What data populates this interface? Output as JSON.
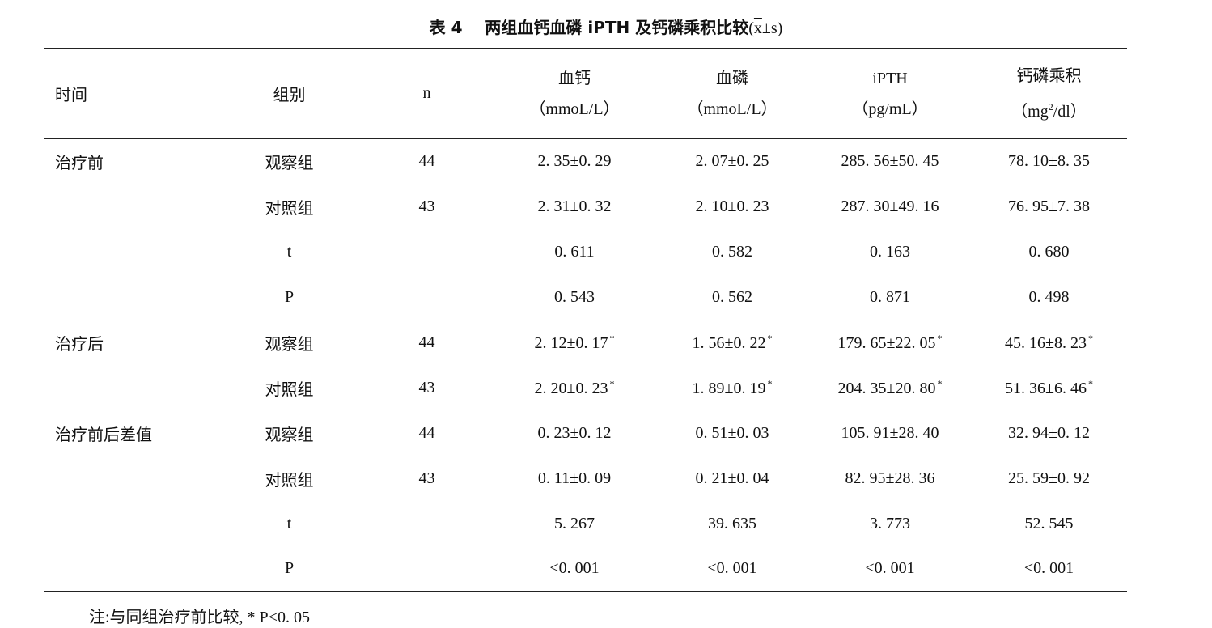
{
  "title": {
    "label": "表 4",
    "text": "两组血钙血磷 iPTH 及钙磷乘积比较",
    "stat": "x",
    "stat_rest": "±s"
  },
  "header": {
    "time": "时间",
    "group": "组别",
    "n": "n",
    "ca": "血钙",
    "ca_unit": "（mmoL/L）",
    "p": "血磷",
    "p_unit": "（mmoL/L）",
    "ipth": "iPTH",
    "ipth_unit": "（pg/mL）",
    "prod": "钙磷乘积",
    "prod_unit_a": "（mg",
    "prod_unit_sup": "2",
    "prod_unit_b": "/dl）"
  },
  "rows": [
    {
      "time": "治疗前",
      "group": "观察组",
      "n": "44",
      "ca": "2. 35±0. 29",
      "p": "2. 07±0. 25",
      "ipth": "285. 56±50. 45",
      "prod": "78. 10±8. 35"
    },
    {
      "time": "",
      "group": "对照组",
      "n": "43",
      "ca": "2. 31±0. 32",
      "p": "2. 10±0. 23",
      "ipth": "287. 30±49. 16",
      "prod": "76. 95±7. 38"
    },
    {
      "time": "",
      "group": "t",
      "n": "",
      "ca": "0. 611",
      "p": "0. 582",
      "ipth": "0. 163",
      "prod": "0. 680"
    },
    {
      "time": "",
      "group": "P",
      "n": "",
      "ca": "0. 543",
      "p": "0. 562",
      "ipth": "0. 871",
      "prod": "0. 498"
    },
    {
      "time": "治疗后",
      "group": "观察组",
      "n": "44",
      "ca": "2. 12±0. 17",
      "p": "1. 56±0. 22",
      "ipth": "179. 65±22. 05",
      "prod": "45. 16±8. 23",
      "mark": "*"
    },
    {
      "time": "",
      "group": "对照组",
      "n": "43",
      "ca": "2. 20±0. 23",
      "p": "1. 89±0. 19",
      "ipth": "204. 35±20. 80",
      "prod": "51. 36±6. 46",
      "mark": "*"
    },
    {
      "time": "治疗前后差值",
      "group": "观察组",
      "n": "44",
      "ca": "0. 23±0. 12",
      "p": "0. 51±0. 03",
      "ipth": "105. 91±28. 40",
      "prod": "32. 94±0. 12"
    },
    {
      "time": "",
      "group": "对照组",
      "n": "43",
      "ca": "0. 11±0. 09",
      "p": "0. 21±0. 04",
      "ipth": "82. 95±28. 36",
      "prod": "25. 59±0. 92"
    },
    {
      "time": "",
      "group": "t",
      "n": "",
      "ca": "5. 267",
      "p": "39. 635",
      "ipth": "3. 773",
      "prod": "52. 545"
    },
    {
      "time": "",
      "group": "P",
      "n": "",
      "ca": "<0. 001",
      "p": "<0. 001",
      "ipth": "<0. 001",
      "prod": "<0. 001"
    }
  ],
  "note": "注:与同组治疗前比较, * P<0. 05"
}
